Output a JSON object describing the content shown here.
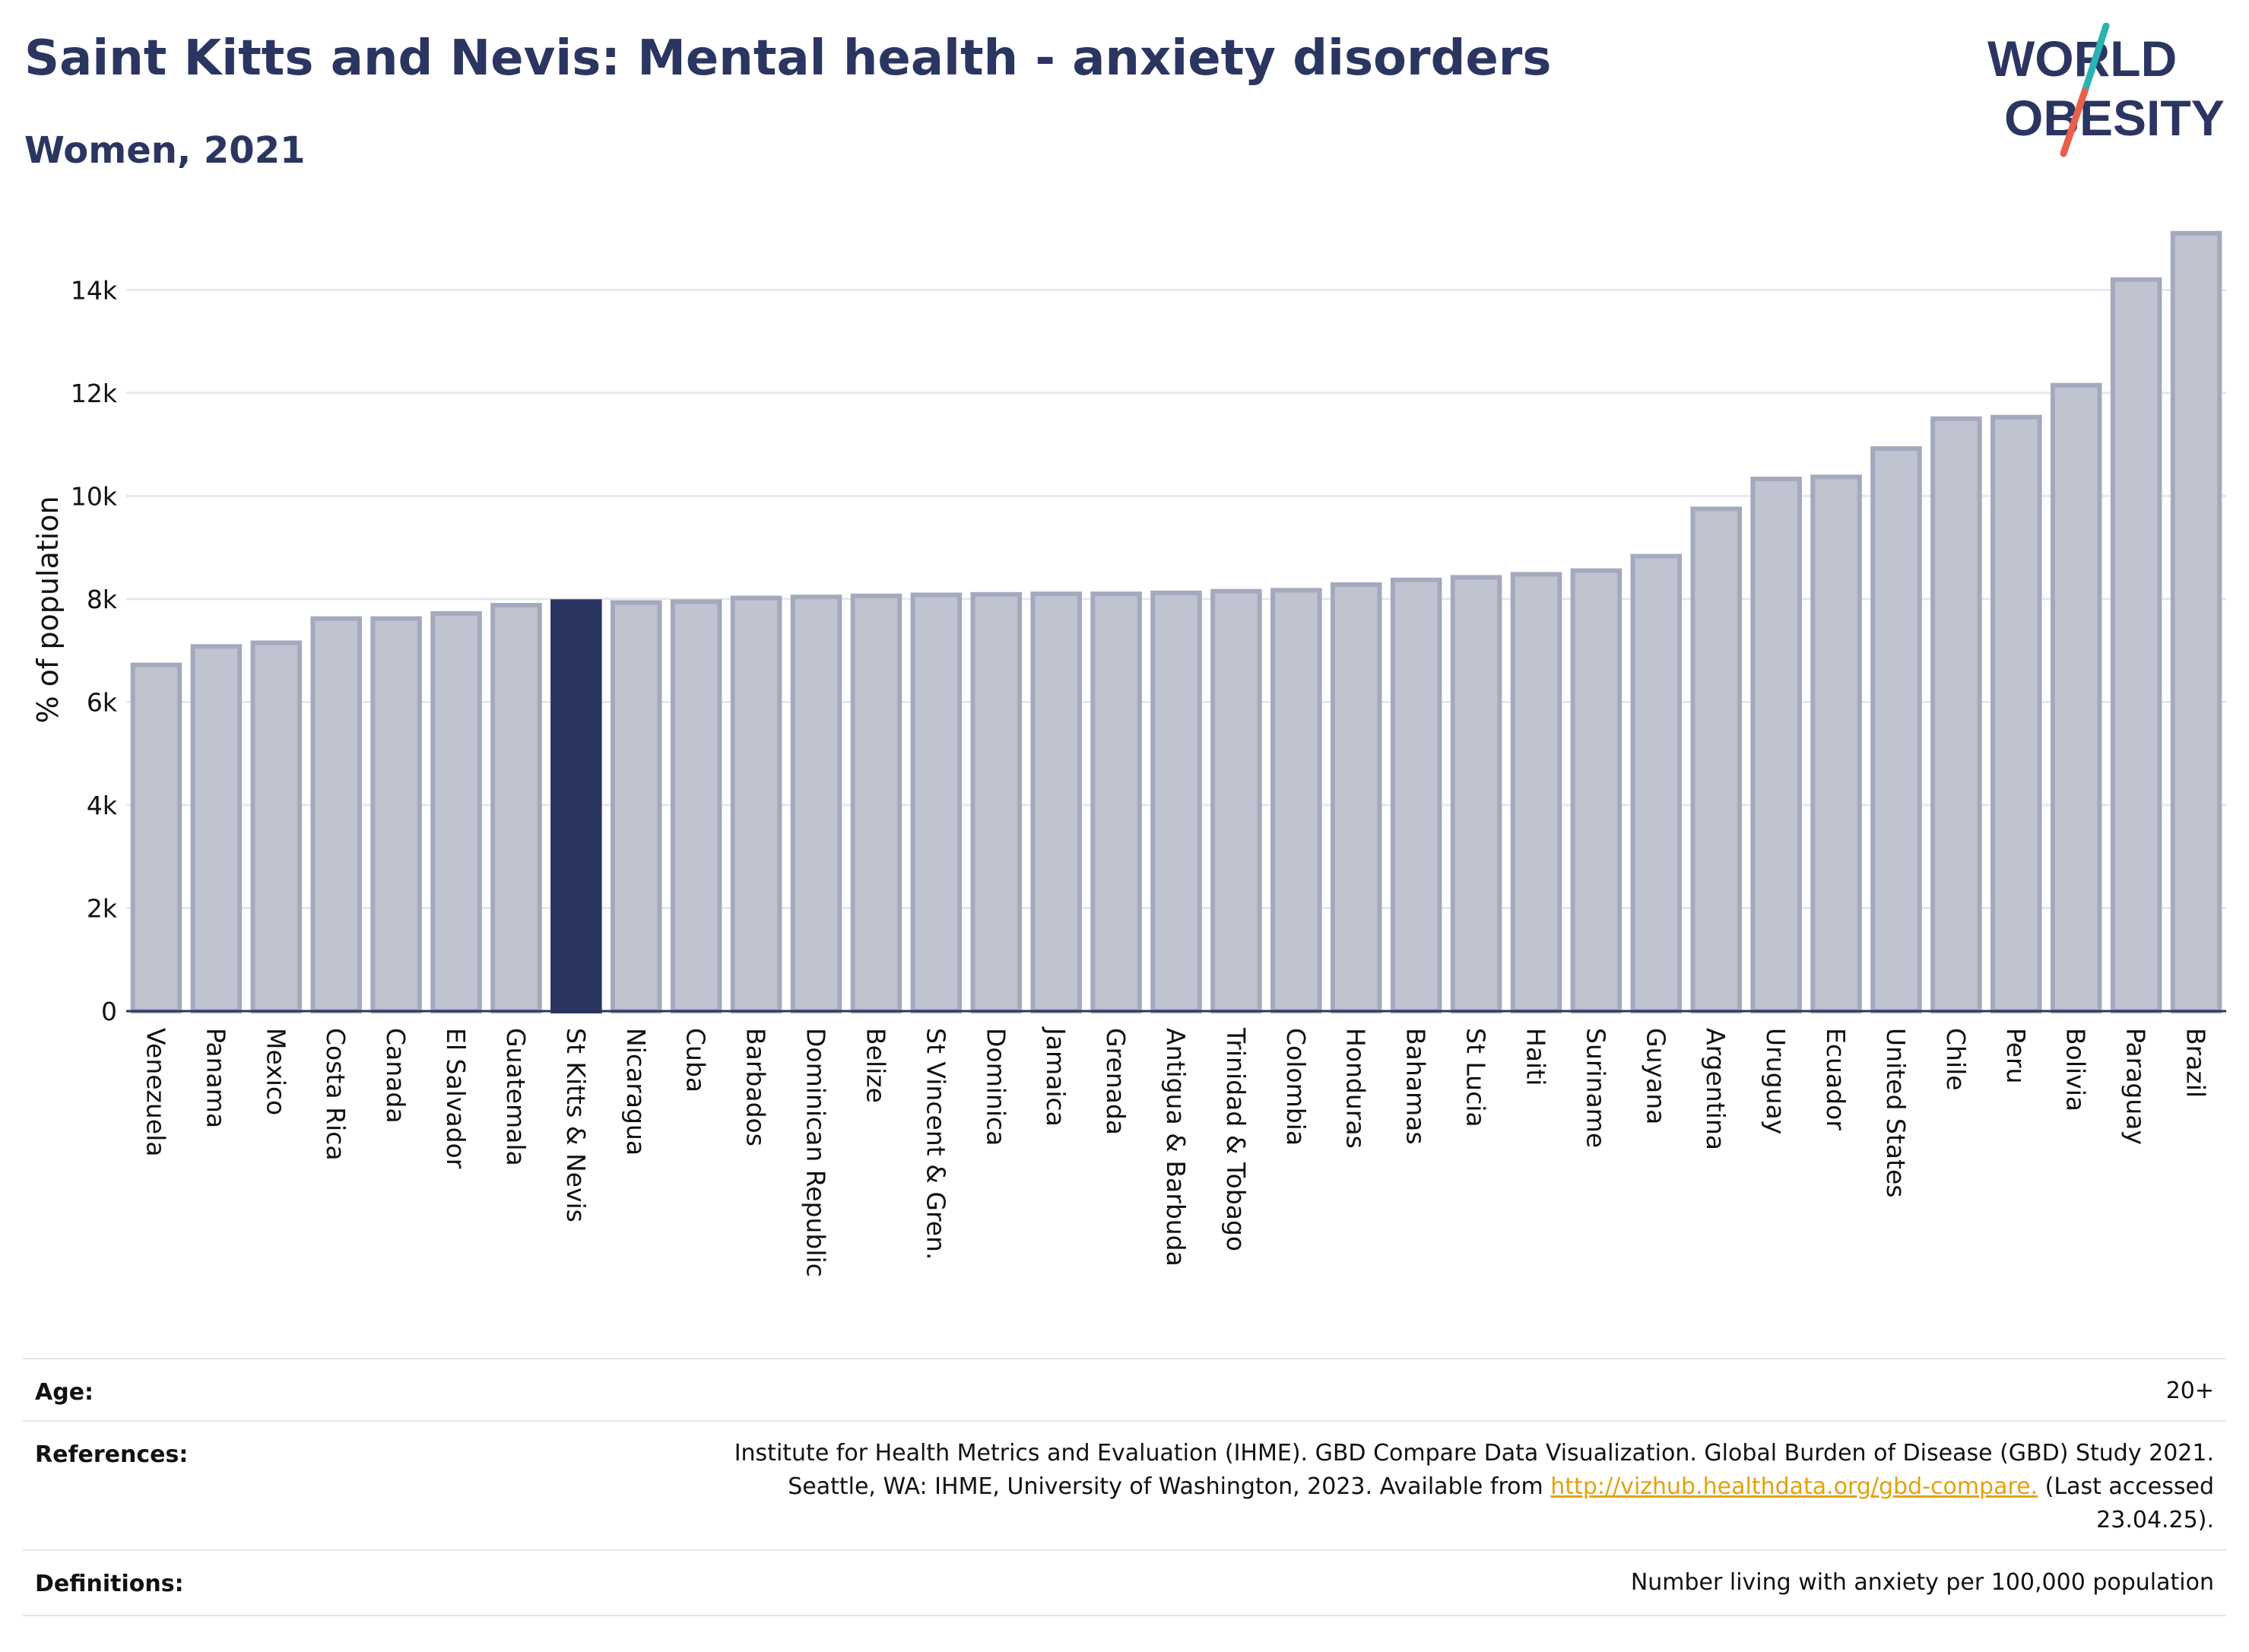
{
  "header": {
    "title": "Saint Kitts and Nevis: Mental health - anxiety disorders",
    "subtitle": "Women, 2021"
  },
  "logo": {
    "line1": "WORLD",
    "line2": "OBESITY",
    "colors": {
      "text": "#2b3561",
      "slash_teal": "#2bb3b1",
      "slash_red": "#e8604c"
    }
  },
  "colors": {
    "bar": "#c0c3d0",
    "bar_stroke": "#a4a9bd",
    "highlight": "#2b3561",
    "grid": "#e6e8ee",
    "axis": "#2b3561"
  },
  "chart_data": {
    "type": "bar",
    "ylabel": "% of population",
    "xlabel": "",
    "ylim": [
      0,
      15200
    ],
    "yticks": [
      0,
      2000,
      4000,
      6000,
      8000,
      10000,
      12000,
      14000
    ],
    "ytick_labels": [
      "0",
      "2k",
      "4k",
      "6k",
      "8k",
      "10k",
      "12k",
      "14k"
    ],
    "grid": true,
    "highlight_category": "St Kitts & Nevis",
    "categories": [
      "Venezuela",
      "Panama",
      "Mexico",
      "Costa Rica",
      "Canada",
      "El Salvador",
      "Guatemala",
      "St Kitts & Nevis",
      "Nicaragua",
      "Cuba",
      "Barbados",
      "Dominican Republic",
      "Belize",
      "St Vincent & Gren.",
      "Dominica",
      "Jamaica",
      "Grenada",
      "Antigua & Barbuda",
      "Trinidad & Tobago",
      "Colombia",
      "Honduras",
      "Bahamas",
      "St Lucia",
      "Haiti",
      "Suriname",
      "Guyana",
      "Argentina",
      "Uruguay",
      "Ecuador",
      "United States",
      "Chile",
      "Peru",
      "Bolivia",
      "Paraguay",
      "Brazil"
    ],
    "values": [
      6720,
      7080,
      7150,
      7620,
      7620,
      7720,
      7880,
      7950,
      7930,
      7950,
      8020,
      8040,
      8060,
      8080,
      8090,
      8100,
      8100,
      8120,
      8150,
      8170,
      8280,
      8370,
      8420,
      8480,
      8550,
      8830,
      9750,
      10330,
      10370,
      10920,
      11500,
      11530,
      12150,
      14200,
      15100
    ]
  },
  "footer": {
    "age_label": "Age:",
    "age_value": "20+",
    "references_label": "References:",
    "references_line1": "Institute for Health Metrics and Evaluation (IHME). GBD Compare Data Visualization. Global Burden of Disease (GBD) Study 2021.",
    "references_line2_pre": "Seattle, WA: IHME, University of Washington, 2023. Available from ",
    "references_link": "http://vizhub.healthdata.org/gbd-compare.",
    "references_line2_post": " (Last accessed",
    "references_line3": "23.04.25).",
    "definitions_label": "Definitions:",
    "definitions_value": "Number living with anxiety per 100,000 population"
  }
}
